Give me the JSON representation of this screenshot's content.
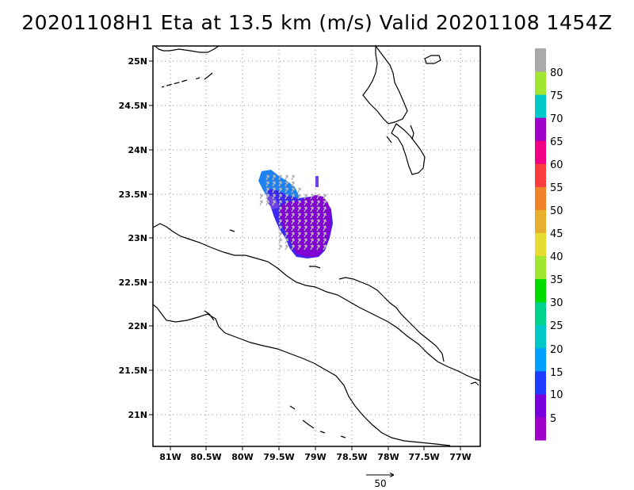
{
  "title": "20201108H1 Eta at 13.5 km (m/s) Valid 20201108  1454Z",
  "lat_labels": [
    "25N",
    "24.5N",
    "24N",
    "23.5N",
    "23N",
    "22.5N",
    "22N",
    "21.5N",
    "21N"
  ],
  "lon_labels": [
    "81W",
    "80.5W",
    "80W",
    "79.5W",
    "79W",
    "78.5W",
    "78W",
    "77.5W",
    "77W"
  ],
  "colorbar": {
    "labels": [
      "5",
      "10",
      "15",
      "20",
      "25",
      "30",
      "35",
      "40",
      "45",
      "50",
      "55",
      "60",
      "65",
      "70",
      "75",
      "80"
    ],
    "colors": [
      "#a000c8",
      "#7800dc",
      "#1e3cff",
      "#00a0ff",
      "#00c8c8",
      "#00d28c",
      "#00dc00",
      "#a0e632",
      "#e6dc32",
      "#e6af2d",
      "#f08228",
      "#fa3c3c",
      "#f00082",
      "#a000c8",
      "#00c8c8",
      "#a0e632",
      "#aaaaaa"
    ]
  },
  "vector_scale": {
    "value": "50"
  },
  "wind_field_colors": {
    "main": "#8200d2",
    "mid": "#3c28f0",
    "light": "#1e82f0",
    "edge": "#6e46e6",
    "arrows": "#b4b4b4"
  }
}
